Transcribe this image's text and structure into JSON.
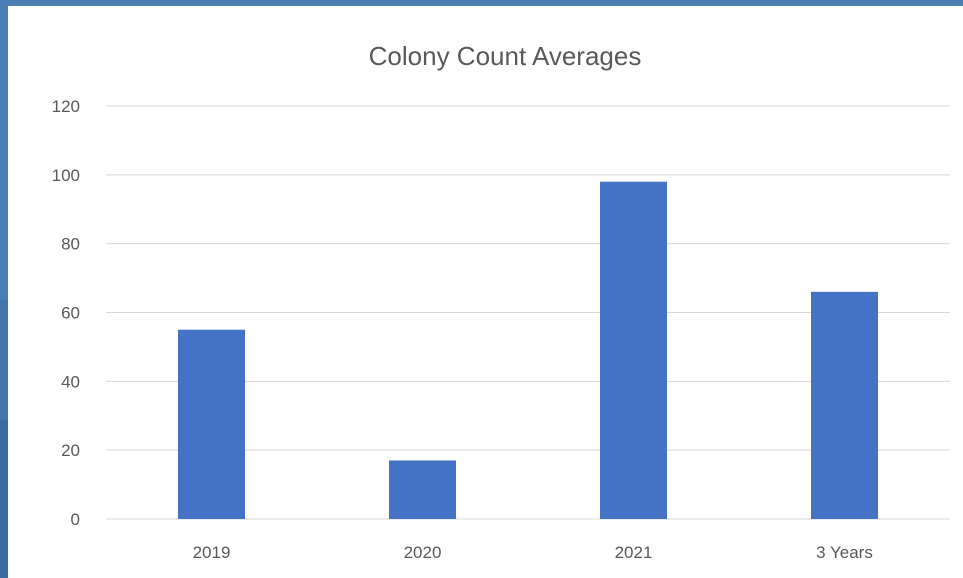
{
  "chart_data": {
    "type": "bar",
    "title": "Colony Count Averages",
    "categories": [
      "2019",
      "2020",
      "2021",
      "3 Years"
    ],
    "values": [
      55,
      17,
      98,
      66
    ],
    "ylim": [
      0,
      120
    ],
    "yticks": [
      "0",
      "20",
      "40",
      "60",
      "80",
      "100",
      "120"
    ],
    "grid": true,
    "legend": "none",
    "bar_color": "#4472c4"
  }
}
